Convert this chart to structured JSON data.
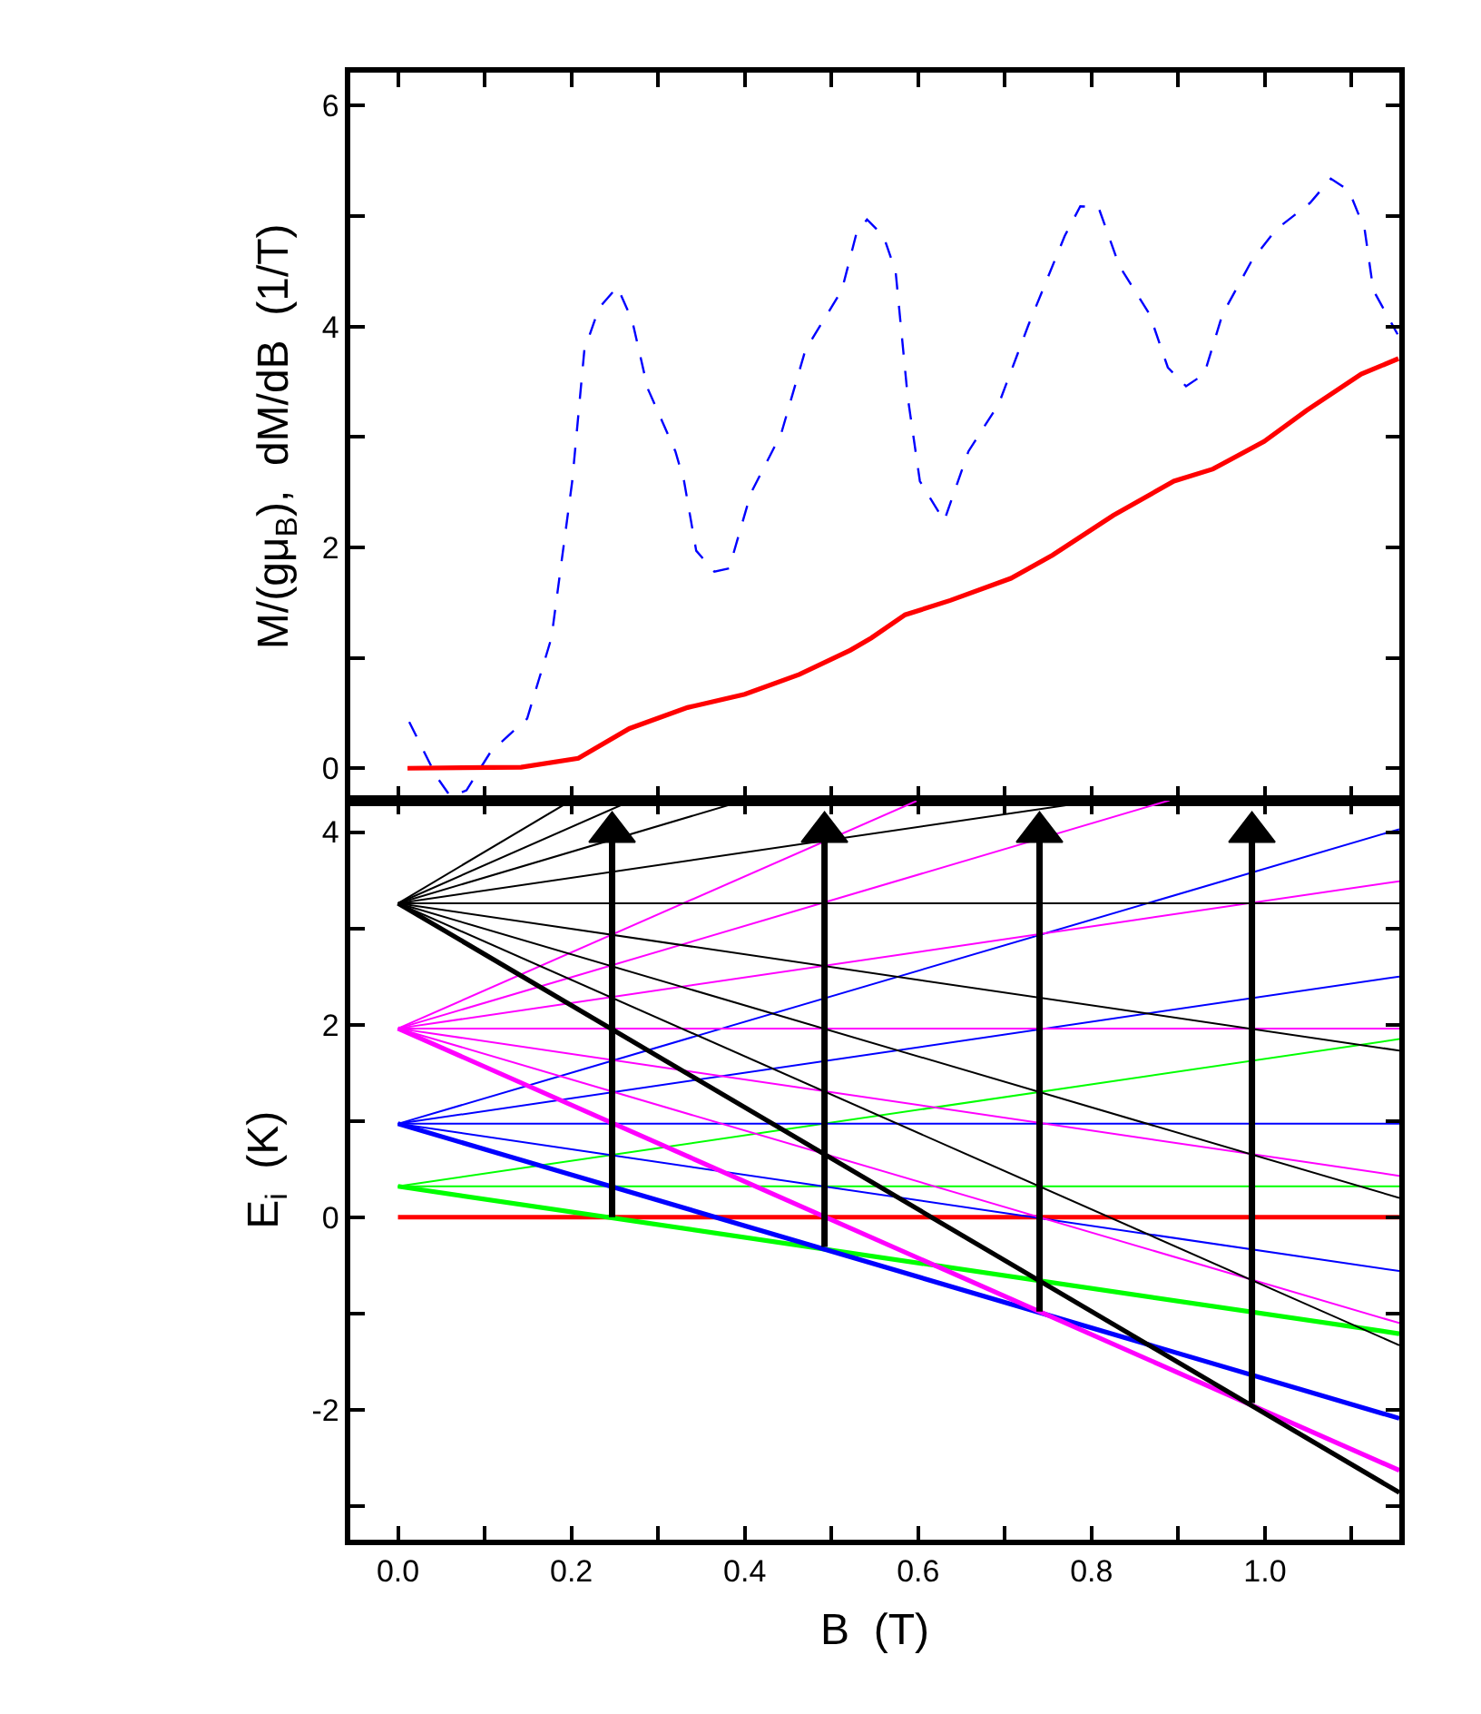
{
  "chart_data": [
    {
      "type": "line",
      "ylabel": "M/(gμ$_{B}$),  dM/dB  (1/T)",
      "xlim": [
        -0.055,
        1.155
      ],
      "ylim": [
        -0.29,
        6.3
      ],
      "xticks": [
        0,
        0.1,
        0.2,
        0.3,
        0.4,
        0.5,
        0.6,
        0.7,
        0.8,
        0.9,
        1.0,
        1.1
      ],
      "yticks": [
        0,
        {
          "value": 1,
          "label": null
        },
        2,
        {
          "value": 3,
          "label": null
        },
        4,
        {
          "value": 5,
          "label": null
        },
        6
      ],
      "tick_labels": "y",
      "series": [
        {
          "color": "#0000ff",
          "line_style": "dashed",
          "x": [
            0.013,
            0.044,
            0.061,
            0.079,
            0.107,
            0.149,
            0.177,
            0.201,
            0.215,
            0.232,
            0.253,
            0.27,
            0.288,
            0.32,
            0.33,
            0.344,
            0.365,
            0.382,
            0.407,
            0.442,
            0.47,
            0.512,
            0.529,
            0.541,
            0.56,
            0.574,
            0.588,
            0.602,
            0.63,
            0.658,
            0.693,
            0.727,
            0.769,
            0.787,
            0.808,
            0.832,
            0.867,
            0.888,
            0.909,
            0.93,
            0.951,
            0.985,
            1.013,
            1.052,
            1.076,
            1.097,
            1.115,
            1.125,
            1.153
          ],
          "values": [
            0.42,
            -0.07,
            -0.26,
            -0.2,
            0.15,
            0.45,
            1.18,
            2.6,
            3.79,
            4.17,
            4.36,
            4.06,
            3.44,
            2.87,
            2.6,
            1.97,
            1.78,
            1.81,
            2.49,
            3.03,
            3.79,
            4.33,
            4.85,
            4.97,
            4.82,
            4.5,
            3.36,
            2.6,
            2.24,
            2.87,
            3.3,
            4.01,
            4.82,
            5.09,
            5.08,
            4.55,
            4.11,
            3.63,
            3.46,
            3.57,
            4.11,
            4.6,
            4.88,
            5.12,
            5.34,
            5.23,
            4.88,
            4.33,
            3.93
          ]
        },
        {
          "color": "#ff0000",
          "line_style": "solid",
          "x": [
            0.011,
            0.142,
            0.208,
            0.267,
            0.334,
            0.4,
            0.463,
            0.522,
            0.546,
            0.585,
            0.637,
            0.707,
            0.755,
            0.825,
            0.895,
            0.94,
            0.999,
            1.048,
            1.111,
            1.154
          ],
          "values": [
            0,
            0.01,
            0.09,
            0.36,
            0.55,
            0.67,
            0.85,
            1.07,
            1.18,
            1.39,
            1.52,
            1.72,
            1.93,
            2.29,
            2.6,
            2.71,
            2.96,
            3.24,
            3.57,
            3.71
          ]
        }
      ]
    },
    {
      "type": "line",
      "xlabel": "B  (T)",
      "ylabel": "E$_{i}$  (K)",
      "xlim": [
        -0.055,
        1.155
      ],
      "ylim": [
        -3.35,
        4.33
      ],
      "xticks": [
        {
          "value": 0,
          "label": "0.0"
        },
        {
          "value": 0.1,
          "label": null
        },
        {
          "value": 0.2,
          "label": "0.2"
        },
        {
          "value": 0.3,
          "label": null
        },
        {
          "value": 0.4,
          "label": "0.4"
        },
        {
          "value": 0.5,
          "label": null
        },
        {
          "value": 0.6,
          "label": "0.6"
        },
        {
          "value": 0.7,
          "label": null
        },
        {
          "value": 0.8,
          "label": "0.8"
        },
        {
          "value": 0.9,
          "label": null
        },
        {
          "value": 1.0,
          "label": "1.0"
        },
        {
          "value": 1.1,
          "label": null
        }
      ],
      "yticks": [
        {
          "value": -3,
          "label": null
        },
        -2,
        {
          "value": -1,
          "label": null
        },
        0,
        {
          "value": 1,
          "label": null
        },
        2,
        {
          "value": 3,
          "label": null
        },
        4
      ],
      "line_style": "solid",
      "marker": "none",
      "series": [
        {
          "color": "#ff0000",
          "x": [
            0,
            1.155
          ],
          "values": [
            0,
            0
          ]
        },
        {
          "color": "#00ff00",
          "x": [
            0,
            1.155
          ],
          "values": [
            0.32,
            -1.21
          ]
        },
        {
          "color": "#00ff00",
          "x": [
            0,
            1.155
          ],
          "values": [
            0.32,
            0.32
          ]
        },
        {
          "color": "#00ff00",
          "x": [
            0,
            1.155
          ],
          "values": [
            0.32,
            1.85
          ]
        },
        {
          "color": "#0000ff",
          "x": [
            0,
            1.155
          ],
          "values": [
            0.97,
            -2.09
          ]
        },
        {
          "color": "#0000ff",
          "x": [
            0,
            1.155
          ],
          "values": [
            0.97,
            -0.56
          ]
        },
        {
          "color": "#0000ff",
          "x": [
            0,
            1.155
          ],
          "values": [
            0.97,
            0.97
          ]
        },
        {
          "color": "#0000ff",
          "x": [
            0,
            1.155
          ],
          "values": [
            0.97,
            2.5
          ]
        },
        {
          "color": "#0000ff",
          "x": [
            0,
            1.155
          ],
          "values": [
            0.97,
            4.03
          ]
        },
        {
          "color": "#ff00ff",
          "x": [
            0,
            1.155
          ],
          "values": [
            1.96,
            -2.63
          ]
        },
        {
          "color": "#ff00ff",
          "x": [
            0,
            1.155
          ],
          "values": [
            1.96,
            -1.1
          ]
        },
        {
          "color": "#ff00ff",
          "x": [
            0,
            1.155
          ],
          "values": [
            1.96,
            0.43
          ]
        },
        {
          "color": "#ff00ff",
          "x": [
            0,
            1.155
          ],
          "values": [
            1.96,
            1.96
          ]
        },
        {
          "color": "#ff00ff",
          "x": [
            0,
            1.155
          ],
          "values": [
            1.96,
            3.49
          ]
        },
        {
          "color": "#ff00ff",
          "x": [
            0,
            0.89
          ],
          "values": [
            1.96,
            4.33
          ]
        },
        {
          "color": "#ff00ff",
          "x": [
            0,
            0.6
          ],
          "values": [
            1.96,
            4.33
          ]
        },
        {
          "color": "#000000",
          "x": [
            0,
            1.155
          ],
          "values": [
            3.26,
            -2.86
          ]
        },
        {
          "color": "#000000",
          "x": [
            0,
            1.155
          ],
          "values": [
            3.26,
            -1.33
          ]
        },
        {
          "color": "#000000",
          "x": [
            0,
            1.155
          ],
          "values": [
            3.26,
            0.2
          ]
        },
        {
          "color": "#000000",
          "x": [
            0,
            1.155
          ],
          "values": [
            3.26,
            1.73
          ]
        },
        {
          "color": "#000000",
          "x": [
            0,
            1.155
          ],
          "values": [
            3.26,
            3.26
          ]
        },
        {
          "color": "#000000",
          "x": [
            0,
            0.81
          ],
          "values": [
            3.26,
            4.33
          ]
        },
        {
          "color": "#000000",
          "x": [
            0,
            0.4
          ],
          "values": [
            3.26,
            4.33
          ]
        },
        {
          "color": "#000000",
          "x": [
            0,
            0.27
          ],
          "values": [
            3.26,
            4.33
          ]
        },
        {
          "color": "#000000",
          "x": [
            0,
            0.2
          ],
          "values": [
            3.26,
            4.33
          ]
        },
        {
          "color": "#000000",
          "marker": "triangle",
          "x": [
            0.247,
            0.247
          ],
          "values": [
            0,
            4.0
          ]
        },
        {
          "color": "#000000",
          "marker": "triangle",
          "x": [
            0.492,
            0.492
          ],
          "values": [
            -0.31,
            4.0
          ]
        },
        {
          "color": "#000000",
          "marker": "triangle",
          "x": [
            0.74,
            0.74
          ],
          "values": [
            -0.98,
            4.0
          ]
        },
        {
          "color": "#000000",
          "marker": "triangle",
          "x": [
            0.985,
            0.985
          ],
          "values": [
            -1.93,
            4.0
          ]
        }
      ]
    }
  ]
}
